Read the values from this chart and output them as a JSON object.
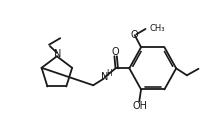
{
  "bg_color": "#ffffff",
  "lc": "#1a1a1a",
  "lw": 1.3,
  "fs": 6.5,
  "xlim": [
    0,
    10
  ],
  "ylim": [
    0,
    6
  ],
  "figsize": [
    2.23,
    1.39
  ],
  "dpi": 100
}
